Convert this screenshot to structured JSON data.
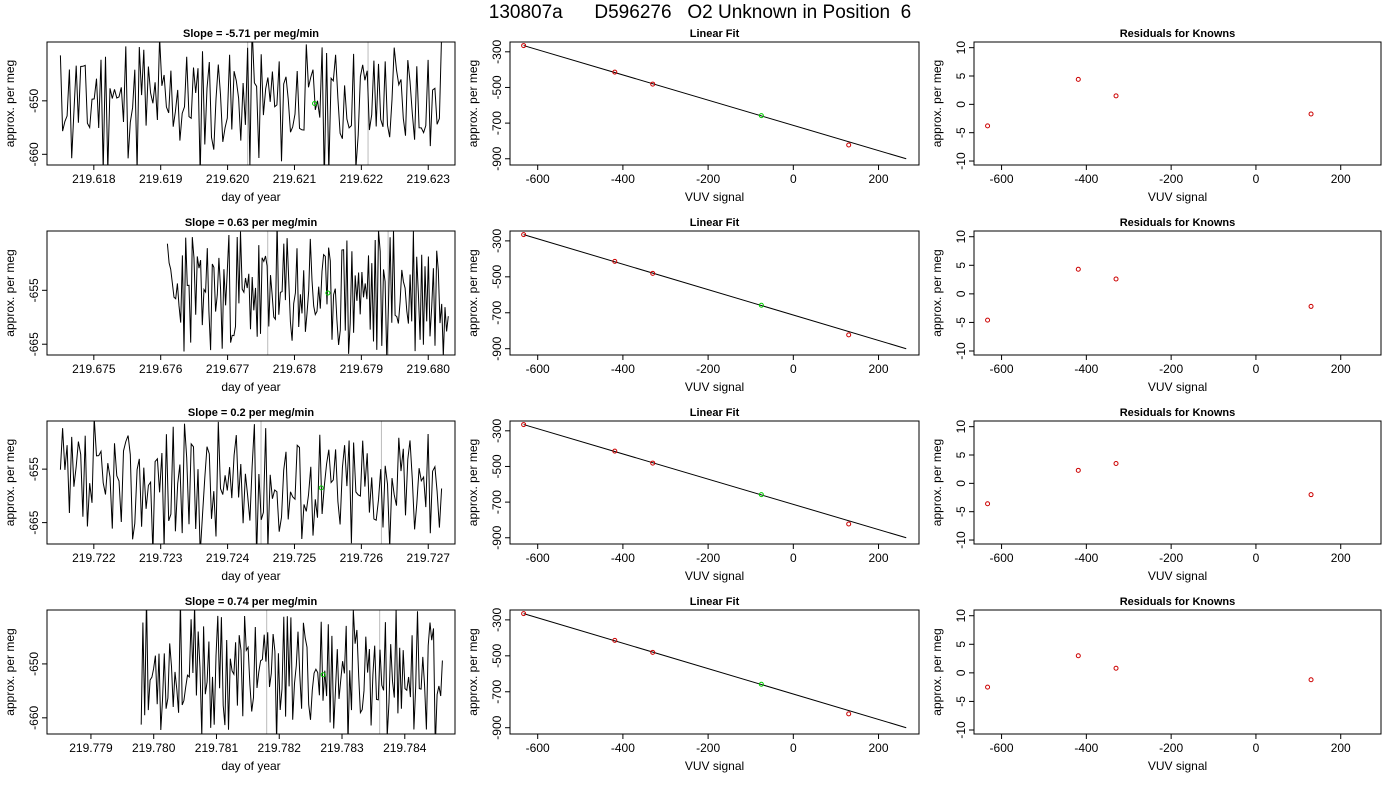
{
  "figure": {
    "title": "130807a      D596276   O2 Unknown in Position  6"
  },
  "chart_data": [
    {
      "type": "line",
      "title": "Slope =  -5.71  per meg/min",
      "xlabel": "day of year",
      "ylabel": "approx. per meg",
      "xlim": [
        219.6173,
        219.6234
      ],
      "ylim": [
        -662.0,
        -639.0
      ],
      "xticks": [
        "219.618",
        "219.619",
        "219.620",
        "219.621",
        "219.622",
        "219.623"
      ],
      "yticks": [
        "-650",
        "-660"
      ],
      "vlines": [
        219.6203,
        219.6221
      ],
      "marker": {
        "x": 219.6213,
        "y": -650.5,
        "color": "#00cc00"
      },
      "series_seed": 11,
      "series_start": 219.6175,
      "series_end": 219.6232,
      "series_mean": -650.0,
      "series_amp": 10.5
    },
    {
      "type": "scatter",
      "title": "Linear Fit",
      "xlabel": "VUV signal",
      "ylabel": "approx. per meg",
      "xlim": [
        -665,
        295
      ],
      "ylim": [
        -935,
        -245
      ],
      "xticks": [
        "-600",
        "-400",
        "-200",
        "0",
        "200"
      ],
      "yticks": [
        "-300",
        "-500",
        "-700",
        "-900"
      ],
      "fit_line": {
        "x": [
          -633,
          265
        ],
        "y": [
          -265,
          -900
        ]
      },
      "knowns": [
        {
          "x": -633,
          "y": -265
        },
        {
          "x": -419,
          "y": -414
        },
        {
          "x": -330,
          "y": -481
        },
        {
          "x": 130,
          "y": -823
        }
      ],
      "unknown": {
        "x": -75,
        "y": -658
      }
    },
    {
      "type": "scatter",
      "title": "Residuals for Knowns",
      "xlabel": "VUV signal",
      "ylabel": "approx. per meg",
      "xlim": [
        -665,
        295
      ],
      "ylim": [
        -10.7,
        11
      ],
      "xticks": [
        "-600",
        "-400",
        "-200",
        "0",
        "200"
      ],
      "yticks": [
        "10",
        "5",
        "0",
        "-5",
        "-10"
      ],
      "residuals": [
        {
          "x": -633,
          "y": -3.8
        },
        {
          "x": -419,
          "y": 4.4
        },
        {
          "x": -330,
          "y": 1.5
        },
        {
          "x": 130,
          "y": -1.7
        }
      ]
    },
    {
      "type": "line",
      "title": "Slope =  0.63  per meg/min",
      "xlabel": "day of year",
      "ylabel": "approx. per meg",
      "xlim": [
        219.6743,
        219.6804
      ],
      "ylim": [
        -667.0,
        -644.0
      ],
      "xticks": [
        "219.675",
        "219.676",
        "219.677",
        "219.678",
        "219.679",
        "219.680"
      ],
      "yticks": [
        "-655",
        "-665"
      ],
      "vlines": [
        219.6776,
        219.6794
      ],
      "marker": {
        "x": 219.6785,
        "y": -655.5,
        "color": "#00cc00"
      },
      "series_seed": 23,
      "series_start": 219.6761,
      "series_end": 219.6803,
      "series_mean": -655.5,
      "series_amp": 10.5
    },
    {
      "type": "scatter",
      "title": "Linear Fit",
      "xlabel": "VUV signal",
      "ylabel": "approx. per meg",
      "xlim": [
        -665,
        295
      ],
      "ylim": [
        -935,
        -245
      ],
      "xticks": [
        "-600",
        "-400",
        "-200",
        "0",
        "200"
      ],
      "yticks": [
        "-300",
        "-500",
        "-700",
        "-900"
      ],
      "fit_line": {
        "x": [
          -633,
          265
        ],
        "y": [
          -265,
          -900
        ]
      },
      "knowns": [
        {
          "x": -633,
          "y": -265
        },
        {
          "x": -419,
          "y": -414
        },
        {
          "x": -330,
          "y": -481
        },
        {
          "x": 130,
          "y": -823
        }
      ],
      "unknown": {
        "x": -75,
        "y": -658
      }
    },
    {
      "type": "scatter",
      "title": "Residuals for Knowns",
      "xlabel": "VUV signal",
      "ylabel": "approx. per meg",
      "xlim": [
        -665,
        295
      ],
      "ylim": [
        -10.7,
        11
      ],
      "xticks": [
        "-600",
        "-400",
        "-200",
        "0",
        "200"
      ],
      "yticks": [
        "10",
        "5",
        "0",
        "-5",
        "-10"
      ],
      "residuals": [
        {
          "x": -633,
          "y": -4.6
        },
        {
          "x": -419,
          "y": 4.3
        },
        {
          "x": -330,
          "y": 2.6
        },
        {
          "x": 130,
          "y": -2.2
        }
      ]
    },
    {
      "type": "line",
      "title": "Slope =  0.2  per meg/min",
      "xlabel": "day of year",
      "ylabel": "approx. per meg",
      "xlim": [
        219.7213,
        219.7274
      ],
      "ylim": [
        -669.0,
        -646.0
      ],
      "xticks": [
        "219.722",
        "219.723",
        "219.724",
        "219.725",
        "219.726",
        "219.727"
      ],
      "yticks": [
        "-655",
        "-665"
      ],
      "vlines": [
        219.7245,
        219.7263
      ],
      "marker": {
        "x": 219.7254,
        "y": -658.5,
        "color": "#00cc00"
      },
      "series_seed": 37,
      "series_start": 219.7215,
      "series_end": 219.7272,
      "series_mean": -658.0,
      "series_amp": 10.5
    },
    {
      "type": "scatter",
      "title": "Linear Fit",
      "xlabel": "VUV signal",
      "ylabel": "approx. per meg",
      "xlim": [
        -665,
        295
      ],
      "ylim": [
        -935,
        -245
      ],
      "xticks": [
        "-600",
        "-400",
        "-200",
        "0",
        "200"
      ],
      "yticks": [
        "-300",
        "-500",
        "-700",
        "-900"
      ],
      "fit_line": {
        "x": [
          -633,
          265
        ],
        "y": [
          -265,
          -900
        ]
      },
      "knowns": [
        {
          "x": -633,
          "y": -265
        },
        {
          "x": -419,
          "y": -414
        },
        {
          "x": -330,
          "y": -481
        },
        {
          "x": 130,
          "y": -823
        }
      ],
      "unknown": {
        "x": -75,
        "y": -658
      }
    },
    {
      "type": "scatter",
      "title": "Residuals for Knowns",
      "xlabel": "VUV signal",
      "ylabel": "approx. per meg",
      "xlim": [
        -665,
        295
      ],
      "ylim": [
        -10.7,
        11
      ],
      "xticks": [
        "-600",
        "-400",
        "-200",
        "0",
        "200"
      ],
      "yticks": [
        "10",
        "5",
        "0",
        "-5",
        "-10"
      ],
      "residuals": [
        {
          "x": -633,
          "y": -3.6
        },
        {
          "x": -419,
          "y": 2.3
        },
        {
          "x": -330,
          "y": 3.5
        },
        {
          "x": 130,
          "y": -2.0
        }
      ]
    },
    {
      "type": "line",
      "title": "Slope =  0.74  per meg/min",
      "xlabel": "day of year",
      "ylabel": "approx. per meg",
      "xlim": [
        219.7783,
        219.7848
      ],
      "ylim": [
        -663.0,
        -640.0
      ],
      "xticks": [
        "219.779",
        "219.780",
        "219.781",
        "219.782",
        "219.783",
        "219.784"
      ],
      "yticks": [
        "-650",
        "-660"
      ],
      "vlines": [
        219.7818,
        219.7836
      ],
      "marker": {
        "x": 219.7827,
        "y": -652.0,
        "color": "#00cc00"
      },
      "series_seed": 53,
      "series_start": 219.7798,
      "series_end": 219.7846,
      "series_mean": -651.5,
      "series_amp": 10.0
    },
    {
      "type": "scatter",
      "title": "Linear Fit",
      "xlabel": "VUV signal",
      "ylabel": "approx. per meg",
      "xlim": [
        -665,
        295
      ],
      "ylim": [
        -935,
        -245
      ],
      "xticks": [
        "-600",
        "-400",
        "-200",
        "0",
        "200"
      ],
      "yticks": [
        "-300",
        "-500",
        "-700",
        "-900"
      ],
      "fit_line": {
        "x": [
          -633,
          265
        ],
        "y": [
          -265,
          -900
        ]
      },
      "knowns": [
        {
          "x": -633,
          "y": -265
        },
        {
          "x": -419,
          "y": -414
        },
        {
          "x": -330,
          "y": -481
        },
        {
          "x": 130,
          "y": -823
        }
      ],
      "unknown": {
        "x": -75,
        "y": -658
      }
    },
    {
      "type": "scatter",
      "title": "Residuals for Knowns",
      "xlabel": "VUV signal",
      "ylabel": "approx. per meg",
      "xlim": [
        -665,
        295
      ],
      "ylim": [
        -10.7,
        11
      ],
      "xticks": [
        "-600",
        "-400",
        "-200",
        "0",
        "200"
      ],
      "yticks": [
        "10",
        "5",
        "0",
        "-5",
        "-10"
      ],
      "residuals": [
        {
          "x": -633,
          "y": -2.5
        },
        {
          "x": -419,
          "y": 3.0
        },
        {
          "x": -330,
          "y": 0.8
        },
        {
          "x": 130,
          "y": -1.2
        }
      ]
    }
  ],
  "colors": {
    "trace": "#000000",
    "known_marker": "#cc0000",
    "unknown_marker": "#00cc00",
    "vline": "#bbbbbb"
  }
}
